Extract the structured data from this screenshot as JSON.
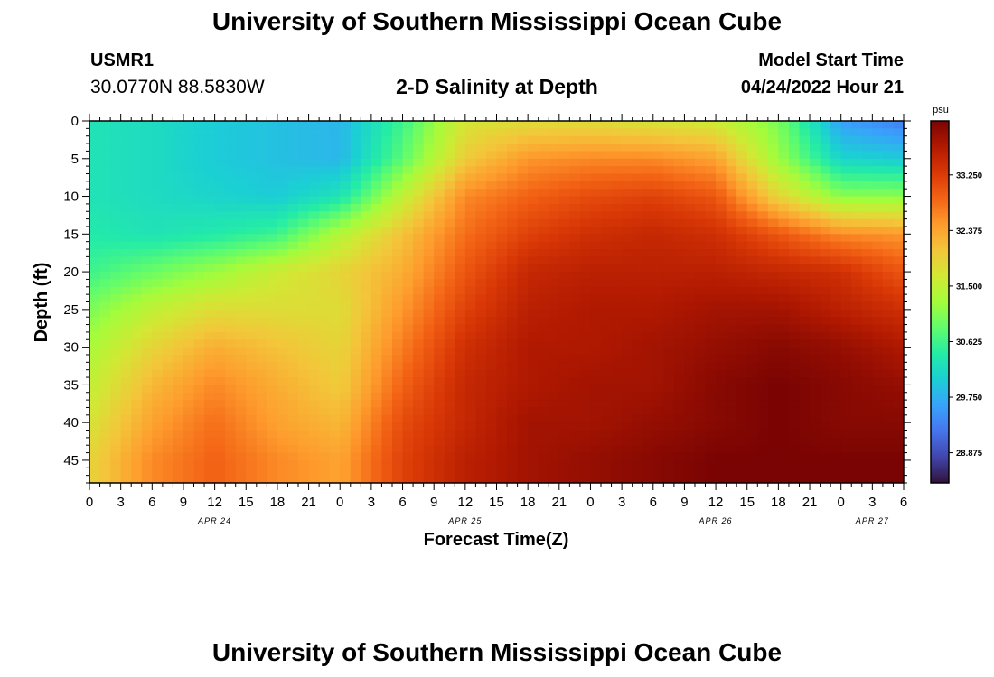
{
  "header": {
    "title": "University of Southern Mississippi Ocean Cube",
    "station_id": "USMR1",
    "station_coords": "30.0770N  88.5830W",
    "plot_title": "2-D Salinity at Depth",
    "model_start_label": "Model Start Time",
    "model_start_value": "04/24/2022 Hour 21"
  },
  "footer": {
    "title": "University of Southern Mississippi Ocean Cube"
  },
  "chart_data": {
    "type": "heatmap",
    "title": "2-D Salinity at Depth",
    "xlabel": "Forecast Time(Z)",
    "ylabel": "Depth (ft)",
    "x_ticks": [
      "0",
      "3",
      "6",
      "9",
      "12",
      "15",
      "18",
      "21",
      "0",
      "3",
      "6",
      "9",
      "12",
      "15",
      "18",
      "21",
      "0",
      "3",
      "6",
      "9",
      "12",
      "15",
      "18",
      "21",
      "0",
      "3",
      "6"
    ],
    "x_dates": [
      {
        "label": "APR 24",
        "tick_index": 4
      },
      {
        "label": "APR 25",
        "tick_index": 12
      },
      {
        "label": "APR 26",
        "tick_index": 20
      },
      {
        "label": "APR 27",
        "tick_index": 25
      }
    ],
    "y_ticks": [
      0,
      5,
      10,
      15,
      20,
      25,
      30,
      35,
      40,
      45
    ],
    "ylim": [
      0,
      48
    ],
    "y_inverted": true,
    "colorbar": {
      "unit": "psu",
      "ticks": [
        "33.250",
        "32.375",
        "31.500",
        "30.625",
        "29.750",
        "28.875"
      ],
      "range": [
        28.4,
        34.1
      ],
      "colors": [
        "#30123b",
        "#4145ab",
        "#4675ed",
        "#39a2fc",
        "#1bcfd4",
        "#24eca6",
        "#61fc6c",
        "#a4fc3b",
        "#d1e834",
        "#f3c63a",
        "#fe9b2d",
        "#f36315",
        "#d93806",
        "#b11901",
        "#7a0403"
      ]
    },
    "depth_rows": [
      0,
      5,
      10,
      15,
      20,
      25,
      30,
      35,
      40,
      45
    ],
    "time_hours": [
      0,
      6,
      12,
      18,
      24,
      30,
      36,
      42,
      48,
      54,
      60,
      66,
      72,
      78
    ],
    "salinity": [
      [
        30.3,
        30.2,
        30.0,
        29.9,
        29.8,
        30.6,
        31.7,
        31.8,
        31.8,
        31.7,
        31.6,
        31.0,
        29.6,
        29.3
      ],
      [
        30.3,
        30.2,
        30.0,
        29.9,
        29.8,
        30.8,
        32.0,
        32.5,
        32.6,
        32.6,
        32.4,
        31.2,
        30.1,
        30.0
      ],
      [
        30.3,
        30.2,
        30.1,
        30.0,
        30.3,
        31.5,
        32.6,
        32.9,
        33.1,
        33.2,
        33.0,
        31.9,
        31.1,
        31.1
      ],
      [
        30.4,
        30.3,
        30.4,
        30.6,
        31.4,
        32.1,
        32.8,
        33.2,
        33.4,
        33.5,
        33.4,
        33.0,
        32.6,
        32.5
      ],
      [
        30.6,
        30.9,
        31.2,
        31.6,
        31.9,
        32.3,
        33.0,
        33.5,
        33.6,
        33.6,
        33.6,
        33.5,
        33.4,
        33.0
      ],
      [
        31.0,
        31.5,
        31.8,
        31.8,
        31.8,
        32.5,
        33.2,
        33.6,
        33.7,
        33.7,
        33.8,
        33.8,
        33.6,
        33.4
      ],
      [
        31.3,
        31.9,
        32.3,
        32.1,
        31.9,
        32.7,
        33.4,
        33.7,
        33.7,
        33.8,
        33.9,
        34.0,
        33.9,
        33.7
      ],
      [
        31.5,
        32.2,
        32.6,
        32.3,
        32.0,
        32.9,
        33.5,
        33.7,
        33.8,
        33.8,
        34.0,
        34.1,
        34.0,
        33.9
      ],
      [
        31.7,
        32.4,
        32.8,
        32.4,
        32.2,
        33.1,
        33.5,
        33.8,
        33.8,
        33.9,
        34.0,
        34.1,
        34.0,
        34.0
      ],
      [
        31.9,
        32.6,
        32.9,
        32.6,
        32.4,
        33.2,
        33.6,
        33.8,
        33.9,
        34.0,
        34.1,
        34.1,
        34.1,
        34.1
      ]
    ]
  }
}
